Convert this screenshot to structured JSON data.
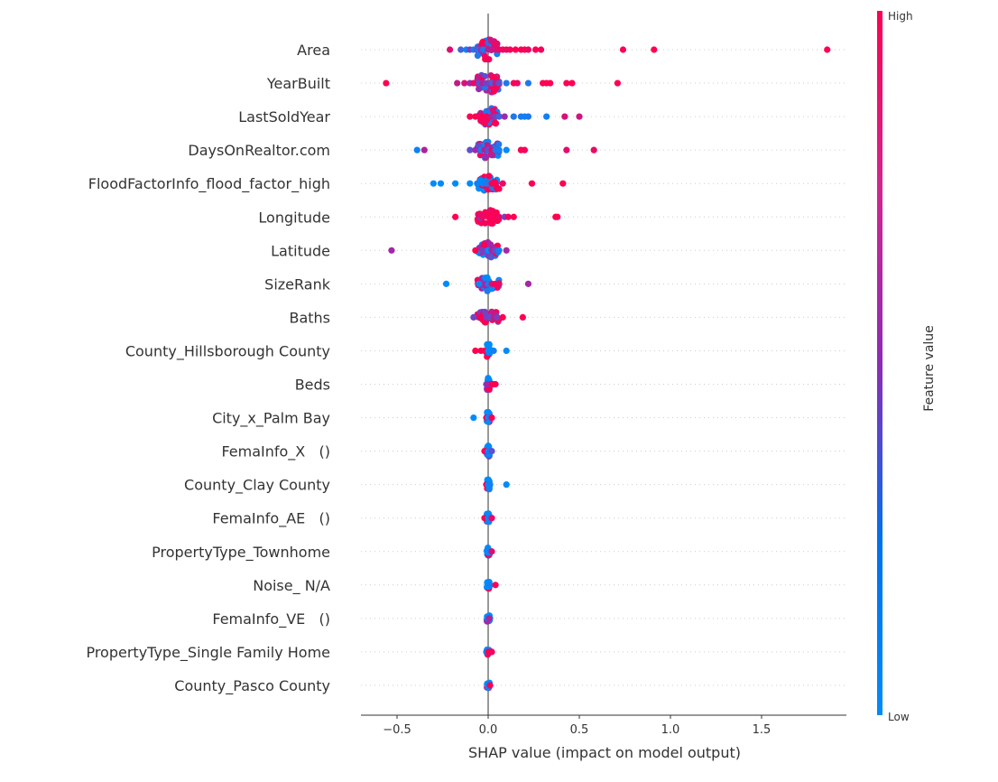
{
  "chart_data": {
    "type": "scatter",
    "subtype": "shap-beeswarm",
    "title": "",
    "xlabel": "SHAP value (impact on model output)",
    "ylabel": "",
    "xlim": [
      -0.68,
      1.97
    ],
    "x_ticks": [
      -0.5,
      0.0,
      0.5,
      1.0,
      1.5
    ],
    "x_tick_labels": [
      "−0.5",
      "0.0",
      "0.5",
      "1.0",
      "1.5"
    ],
    "grid": "dotted horizontal per feature",
    "colorbar": {
      "title": "Feature value",
      "high_label": "High",
      "low_label": "Low",
      "high_color": "#ff0052",
      "mid_color": "#9a2bb0",
      "low_color": "#008bfb",
      "placement": "right"
    },
    "features": [
      {
        "name": "Area",
        "points": [
          [
            -0.21,
            0.85
          ],
          [
            -0.15,
            0.2
          ],
          [
            -0.12,
            0.05
          ],
          [
            -0.1,
            0.4
          ],
          [
            -0.08,
            0.1
          ],
          [
            -0.06,
            0.3
          ],
          [
            -0.05,
            0.05
          ],
          [
            -0.04,
            0.5
          ],
          [
            -0.03,
            0.2
          ],
          [
            -0.02,
            0.1
          ],
          [
            0.0,
            0.6
          ],
          [
            0.02,
            0.7
          ],
          [
            0.04,
            0.8
          ],
          [
            0.06,
            0.9
          ],
          [
            0.08,
            0.95
          ],
          [
            0.1,
            0.9
          ],
          [
            0.12,
            0.95
          ],
          [
            0.15,
            1.0
          ],
          [
            0.18,
            0.95
          ],
          [
            0.2,
            1.0
          ],
          [
            0.22,
            0.9
          ],
          [
            0.26,
            1.0
          ],
          [
            0.29,
            0.95
          ],
          [
            0.74,
            1.0
          ],
          [
            0.91,
            1.0
          ],
          [
            1.86,
            1.0
          ]
        ]
      },
      {
        "name": "YearBuilt",
        "points": [
          [
            -0.56,
            1.0
          ],
          [
            -0.17,
            0.7
          ],
          [
            -0.13,
            0.8
          ],
          [
            -0.1,
            0.5
          ],
          [
            -0.08,
            0.9
          ],
          [
            -0.05,
            0.3
          ],
          [
            -0.03,
            0.6
          ],
          [
            -0.01,
            0.4
          ],
          [
            0.02,
            0.2
          ],
          [
            0.04,
            0.7
          ],
          [
            0.06,
            0.3
          ],
          [
            0.1,
            0.1
          ],
          [
            0.14,
            1.0
          ],
          [
            0.16,
            0.9
          ],
          [
            0.22,
            0.1
          ],
          [
            0.3,
            1.0
          ],
          [
            0.32,
            1.0
          ],
          [
            0.34,
            1.0
          ],
          [
            0.43,
            1.0
          ],
          [
            0.46,
            1.0
          ],
          [
            0.71,
            1.0
          ]
        ]
      },
      {
        "name": "LastSoldYear",
        "points": [
          [
            -0.1,
            1.0
          ],
          [
            -0.07,
            1.0
          ],
          [
            -0.05,
            0.95
          ],
          [
            -0.03,
            1.0
          ],
          [
            -0.01,
            0.95
          ],
          [
            0.02,
            0.6
          ],
          [
            0.04,
            0.4
          ],
          [
            0.06,
            0.2
          ],
          [
            0.09,
            0.5
          ],
          [
            0.14,
            0.1
          ],
          [
            0.18,
            0.1
          ],
          [
            0.2,
            0.05
          ],
          [
            0.22,
            0.1
          ],
          [
            0.32,
            0.05
          ],
          [
            0.42,
            0.8
          ],
          [
            0.5,
            0.75
          ]
        ]
      },
      {
        "name": "DaysOnRealtor.com",
        "points": [
          [
            -0.39,
            0.05
          ],
          [
            -0.35,
            0.6
          ],
          [
            -0.1,
            0.3
          ],
          [
            -0.07,
            0.5
          ],
          [
            -0.04,
            0.1
          ],
          [
            -0.02,
            0.6
          ],
          [
            0.0,
            0.3
          ],
          [
            0.02,
            0.9
          ],
          [
            0.04,
            0.1
          ],
          [
            0.06,
            0.05
          ],
          [
            0.1,
            0.0
          ],
          [
            0.18,
            1.0
          ],
          [
            0.2,
            0.95
          ],
          [
            0.43,
            0.85
          ],
          [
            0.58,
            0.9
          ]
        ]
      },
      {
        "name": "FloodFactorInfo_flood_factor_high",
        "points": [
          [
            -0.3,
            0.0
          ],
          [
            -0.26,
            0.0
          ],
          [
            -0.18,
            0.0
          ],
          [
            -0.1,
            0.0
          ],
          [
            -0.06,
            0.05
          ],
          [
            -0.03,
            0.0
          ],
          [
            -0.01,
            0.1
          ],
          [
            0.02,
            1.0
          ],
          [
            0.04,
            1.0
          ],
          [
            0.08,
            0.9
          ],
          [
            0.24,
            1.0
          ],
          [
            0.41,
            1.0
          ]
        ]
      },
      {
        "name": "Longitude",
        "points": [
          [
            -0.18,
            1.0
          ],
          [
            -0.03,
            0.9
          ],
          [
            0.0,
            1.0
          ],
          [
            0.02,
            0.95
          ],
          [
            0.04,
            1.0
          ],
          [
            0.06,
            0.9
          ],
          [
            0.09,
            0.4
          ],
          [
            0.11,
            0.95
          ],
          [
            0.14,
            1.0
          ],
          [
            0.37,
            1.0
          ],
          [
            0.38,
            1.0
          ]
        ]
      },
      {
        "name": "Latitude",
        "points": [
          [
            -0.53,
            0.55
          ],
          [
            -0.07,
            1.0
          ],
          [
            -0.03,
            0.4
          ],
          [
            0.0,
            0.0
          ],
          [
            0.02,
            0.6
          ],
          [
            0.04,
            0.3
          ],
          [
            0.06,
            0.05
          ],
          [
            0.1,
            0.55
          ]
        ]
      },
      {
        "name": "SizeRank",
        "points": [
          [
            -0.23,
            0.0
          ],
          [
            -0.05,
            0.0
          ],
          [
            -0.01,
            0.6
          ],
          [
            0.0,
            0.1
          ],
          [
            0.02,
            0.8
          ],
          [
            0.04,
            1.0
          ],
          [
            0.06,
            0.9
          ],
          [
            0.22,
            0.55
          ]
        ]
      },
      {
        "name": "Baths",
        "points": [
          [
            -0.08,
            0.35
          ],
          [
            -0.04,
            1.0
          ],
          [
            -0.01,
            0.4
          ],
          [
            0.01,
            0.3
          ],
          [
            0.03,
            0.7
          ],
          [
            0.05,
            0.4
          ],
          [
            0.08,
            1.0
          ],
          [
            0.19,
            1.0
          ]
        ]
      },
      {
        "name": "County_Hillsborough County",
        "points": [
          [
            -0.07,
            1.0
          ],
          [
            -0.04,
            1.0
          ],
          [
            -0.02,
            1.0
          ],
          [
            0.0,
            0.0
          ],
          [
            0.02,
            0.0
          ],
          [
            0.03,
            0.05
          ],
          [
            0.1,
            0.0
          ]
        ]
      },
      {
        "name": "Beds",
        "points": [
          [
            -0.01,
            0.4
          ],
          [
            0.0,
            0.6
          ],
          [
            0.01,
            0.5
          ],
          [
            0.02,
            1.0
          ],
          [
            0.03,
            1.0
          ],
          [
            0.04,
            1.0
          ]
        ]
      },
      {
        "name": "City_x_Palm Bay",
        "points": [
          [
            -0.08,
            0.0
          ],
          [
            -0.01,
            1.0
          ],
          [
            0.0,
            0.0
          ],
          [
            0.01,
            0.05
          ],
          [
            0.02,
            1.0
          ]
        ]
      },
      {
        "name": "FemaInfo_X   ()",
        "points": [
          [
            -0.02,
            1.0
          ],
          [
            -0.01,
            0.9
          ],
          [
            0.0,
            0.0
          ],
          [
            0.01,
            0.1
          ],
          [
            0.02,
            0.3
          ]
        ]
      },
      {
        "name": "County_Clay County",
        "points": [
          [
            -0.01,
            1.0
          ],
          [
            0.0,
            0.0
          ],
          [
            0.01,
            0.05
          ],
          [
            0.1,
            0.0
          ]
        ]
      },
      {
        "name": "FemaInfo_AE   ()",
        "points": [
          [
            -0.02,
            1.0
          ],
          [
            0.0,
            0.0
          ],
          [
            0.01,
            0.1
          ],
          [
            0.02,
            0.9
          ]
        ]
      },
      {
        "name": "PropertyType_Townhome",
        "points": [
          [
            0.0,
            0.0
          ],
          [
            0.01,
            0.05
          ],
          [
            0.02,
            0.85
          ]
        ]
      },
      {
        "name": "Noise_ N/A",
        "points": [
          [
            0.0,
            0.0
          ],
          [
            0.01,
            0.05
          ],
          [
            0.04,
            1.0
          ]
        ]
      },
      {
        "name": "FemaInfo_VE   ()",
        "points": [
          [
            0.0,
            0.0
          ],
          [
            0.01,
            0.05
          ],
          [
            0.005,
            0.6
          ]
        ]
      },
      {
        "name": "PropertyType_Single Family Home",
        "points": [
          [
            -0.01,
            0.0
          ],
          [
            0.0,
            1.0
          ],
          [
            0.01,
            1.0
          ],
          [
            0.02,
            0.95
          ]
        ]
      },
      {
        "name": "County_Pasco County",
        "points": [
          [
            0.0,
            0.0
          ],
          [
            0.01,
            0.05
          ],
          [
            0.01,
            1.0
          ]
        ]
      }
    ]
  }
}
